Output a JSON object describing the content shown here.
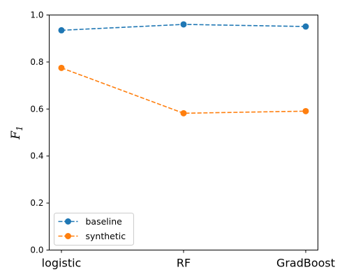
{
  "chart_data": {
    "type": "line",
    "categories": [
      "logistic",
      "RF",
      "GradBoost"
    ],
    "series": [
      {
        "name": "baseline",
        "values": [
          0.935,
          0.96,
          0.951
        ],
        "color": "#1f77b4",
        "line_style": "dashed",
        "marker": "circle"
      },
      {
        "name": "synthetic",
        "values": [
          0.775,
          0.582,
          0.591
        ],
        "color": "#ff7f0e",
        "line_style": "dashed",
        "marker": "circle"
      }
    ],
    "title": "",
    "xlabel": "",
    "ylabel": "F",
    "ylabel_subscript": "1",
    "ylim": [
      0,
      1
    ],
    "yticks": [
      0.0,
      0.2,
      0.4,
      0.6,
      0.8,
      1.0
    ],
    "ytick_labels": [
      "0.0",
      "0.2",
      "0.4",
      "0.6",
      "0.8",
      "1.0"
    ],
    "grid": false,
    "legend_position": "lower-left"
  }
}
